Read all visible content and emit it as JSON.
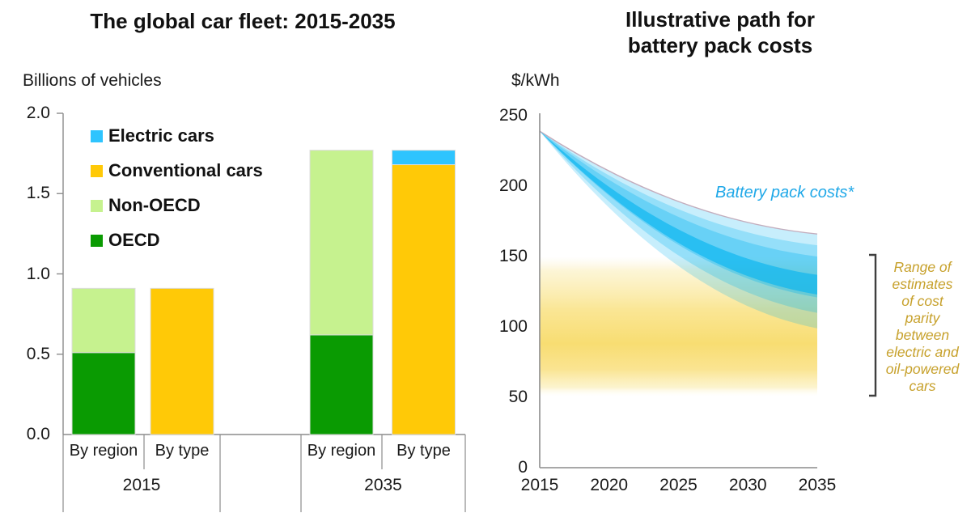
{
  "figure": {
    "background": "#FFFFFF"
  },
  "chart_data": [
    {
      "type": "bar",
      "stacked": true,
      "title": "The global car fleet: 2015-2035",
      "ylabel": "Billions of vehicles",
      "ylim": [
        0,
        2
      ],
      "y_tick_labels": [
        "2.0",
        "1.5",
        "1.0",
        "0.5",
        "0.0"
      ],
      "y_tick_values": [
        2,
        1.5,
        1,
        0.5,
        0
      ],
      "legend": [
        "Electric cars",
        "Conventional cars",
        "Non-OECD",
        "OECD"
      ],
      "colors": {
        "Electric cars": "#2EC4FE",
        "Conventional cars": "#FFC907",
        "Non-OECD": "#C6F28F",
        "OECD": "#0A9B02"
      },
      "group_labels": [
        "2015",
        "2035"
      ],
      "bars": [
        {
          "group": "2015",
          "label": "By region",
          "stack": [
            {
              "name": "OECD",
              "value": 0.51
            },
            {
              "name": "Non-OECD",
              "value": 0.4
            }
          ]
        },
        {
          "group": "2015",
          "label": "By type",
          "stack": [
            {
              "name": "Conventional cars",
              "value": 0.91
            }
          ]
        },
        {
          "group": "2035",
          "label": "By region",
          "stack": [
            {
              "name": "OECD",
              "value": 0.62
            },
            {
              "name": "Non-OECD",
              "value": 1.15
            }
          ]
        },
        {
          "group": "2035",
          "label": "By type",
          "stack": [
            {
              "name": "Conventional cars",
              "value": 1.68
            },
            {
              "name": "Electric cars",
              "value": 0.09
            }
          ]
        }
      ]
    },
    {
      "type": "area",
      "title": "Illustrative path for battery pack costs",
      "title_lines": [
        "Illustrative path for",
        "battery pack costs"
      ],
      "ylabel": "$/kWh",
      "ylim": [
        0,
        250
      ],
      "y_tick_labels": [
        "250",
        "200",
        "150",
        "100",
        "50",
        "0"
      ],
      "y_tick_values": [
        250,
        200,
        150,
        100,
        50,
        0
      ],
      "x_tick_labels": [
        "2015",
        "2020",
        "2025",
        "2030",
        "2035"
      ],
      "x_tick_values": [
        2015,
        2020,
        2025,
        2030,
        2035
      ],
      "x_range": [
        2015,
        2035
      ],
      "fan": {
        "label": "Battery pack costs*",
        "label_color": "#1FA8E8",
        "base_color": "#00B2F0",
        "edge_stroke_color": "#C3ADBD",
        "start": {
          "year": 2015,
          "value": 239
        },
        "end_year": 2035,
        "bands": [
          {
            "end_top": 166,
            "end_bottom": 99,
            "alpha": 0.22
          },
          {
            "end_top": 158,
            "end_bottom": 110,
            "alpha": 0.25
          },
          {
            "end_top": 150,
            "end_bottom": 121,
            "alpha": 0.3
          },
          {
            "end_top": 137,
            "end_bottom": 123,
            "alpha": 0.6
          }
        ]
      },
      "parity_band": {
        "label_lines": [
          "Range of",
          "estimates",
          "of cost",
          "parity",
          "between",
          "electric and",
          "oil-powered",
          "cars"
        ],
        "label_color": "#C7A12C",
        "top_value": 150,
        "bottom_value": 50,
        "fill_color": "#F8DD72"
      }
    }
  ]
}
